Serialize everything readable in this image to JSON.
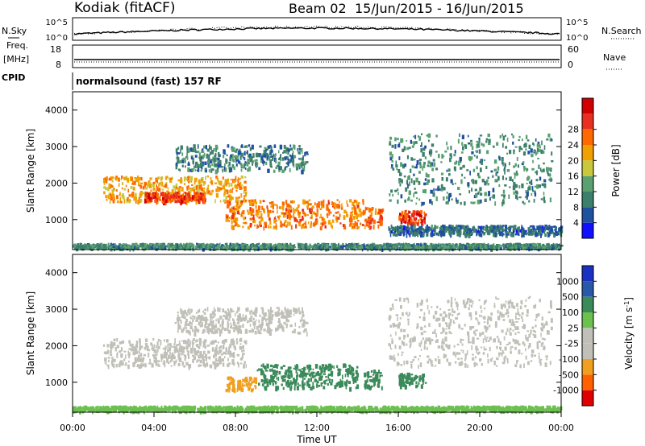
{
  "header": {
    "station": "Kodiak (fitACF)",
    "beam": "Beam 02",
    "dates": "15/Jun/2015 - 16/Jun/2015"
  },
  "top_panels": {
    "nsky_label": "N.Sky",
    "nsearch_label": "N.Search",
    "nsky_ticks": [
      "10^5",
      "10^0"
    ],
    "freq_label_line1": "Freq.",
    "freq_label_line2": "[MHz]",
    "freq_ticks": [
      "18",
      "8"
    ],
    "nave_label": "Nave",
    "nave_ticks": [
      "60",
      "0"
    ],
    "cpid_label": "CPID",
    "cpid_text": "normalsound (fast) 157 RF"
  },
  "colors": {
    "power_scale": [
      "#1010ff",
      "#2050a0",
      "#3c7f6a",
      "#5aa070",
      "#c8c83c",
      "#f0a000",
      "#ff6a00",
      "#e83020",
      "#d00000"
    ],
    "velocity_scale": [
      "#e00000",
      "#ff6000",
      "#f0a020",
      "#c0c0b8",
      "#c0c0b8",
      "#6cc050",
      "#3a8a5a",
      "#2a58a8",
      "#1a30c0"
    ]
  },
  "chart_data": [
    {
      "type": "heatmap",
      "title": "Power",
      "ylabel": "Slant Range [km]",
      "ylim": [
        180,
        4500
      ],
      "yticks": [
        "1000",
        "2000",
        "3000",
        "4000"
      ],
      "xlim": [
        "00:00",
        "24:00"
      ],
      "colorbar_label": "Power [dB]",
      "colorbar_ticks": [
        "4",
        "8",
        "12",
        "16",
        "20",
        "24",
        "28"
      ],
      "colorbar_range": [
        0,
        32
      ],
      "bands": [
        {
          "t0": 0.0,
          "t1": 24.0,
          "r0": 180,
          "r1": 300,
          "value": 10
        },
        {
          "t0": 1.5,
          "t1": 8.5,
          "r0": 1450,
          "r1": 2150,
          "value": 20
        },
        {
          "t0": 3.5,
          "t1": 6.5,
          "r0": 1450,
          "r1": 1700,
          "value": 26
        },
        {
          "t0": 7.5,
          "t1": 14.3,
          "r0": 750,
          "r1": 1500,
          "value": 22
        },
        {
          "t0": 14.3,
          "t1": 15.2,
          "r0": 750,
          "r1": 1300,
          "value": 24
        },
        {
          "t0": 16.0,
          "t1": 17.3,
          "r0": 850,
          "r1": 1200,
          "value": 26
        },
        {
          "t0": 15.5,
          "t1": 23.5,
          "r0": 1400,
          "r1": 3300,
          "value": 10
        },
        {
          "t0": 5.0,
          "t1": 11.5,
          "r0": 2300,
          "r1": 3000,
          "value": 9
        },
        {
          "t0": 15.5,
          "t1": 24.0,
          "r0": 550,
          "r1": 800,
          "value": 7
        }
      ]
    },
    {
      "type": "heatmap",
      "title": "Velocity",
      "ylabel": "Slant Range [km]",
      "ylim": [
        180,
        4500
      ],
      "yticks": [
        "1000",
        "2000",
        "3000",
        "4000"
      ],
      "xlim": [
        "00:00",
        "24:00"
      ],
      "xticks": [
        "00:00",
        "04:00",
        "08:00",
        "12:00",
        "16:00",
        "20:00",
        "00:00"
      ],
      "xlabel": "Time UT",
      "colorbar_label": "Velocity [m s^-1]",
      "colorbar_ticks": [
        "-1000",
        "-500",
        "-100",
        "-25",
        "25",
        "100",
        "500",
        "1000"
      ],
      "bands": [
        {
          "t0": 0.0,
          "t1": 24.0,
          "r0": 180,
          "r1": 300,
          "value": 60
        },
        {
          "t0": 1.5,
          "t1": 8.5,
          "r0": 1400,
          "r1": 2150,
          "value": 0
        },
        {
          "t0": 9.0,
          "t1": 14.0,
          "r0": 800,
          "r1": 1450,
          "value": 300
        },
        {
          "t0": 7.5,
          "t1": 9.0,
          "r0": 750,
          "r1": 1100,
          "value": -200
        },
        {
          "t0": 14.3,
          "t1": 15.2,
          "r0": 800,
          "r1": 1300,
          "value": 250
        },
        {
          "t0": 16.0,
          "t1": 17.3,
          "r0": 850,
          "r1": 1200,
          "value": 200
        },
        {
          "t0": 15.5,
          "t1": 23.5,
          "r0": 1400,
          "r1": 3300,
          "value": 0
        },
        {
          "t0": 5.0,
          "t1": 11.5,
          "r0": 2300,
          "r1": 3000,
          "value": 0
        }
      ]
    }
  ]
}
